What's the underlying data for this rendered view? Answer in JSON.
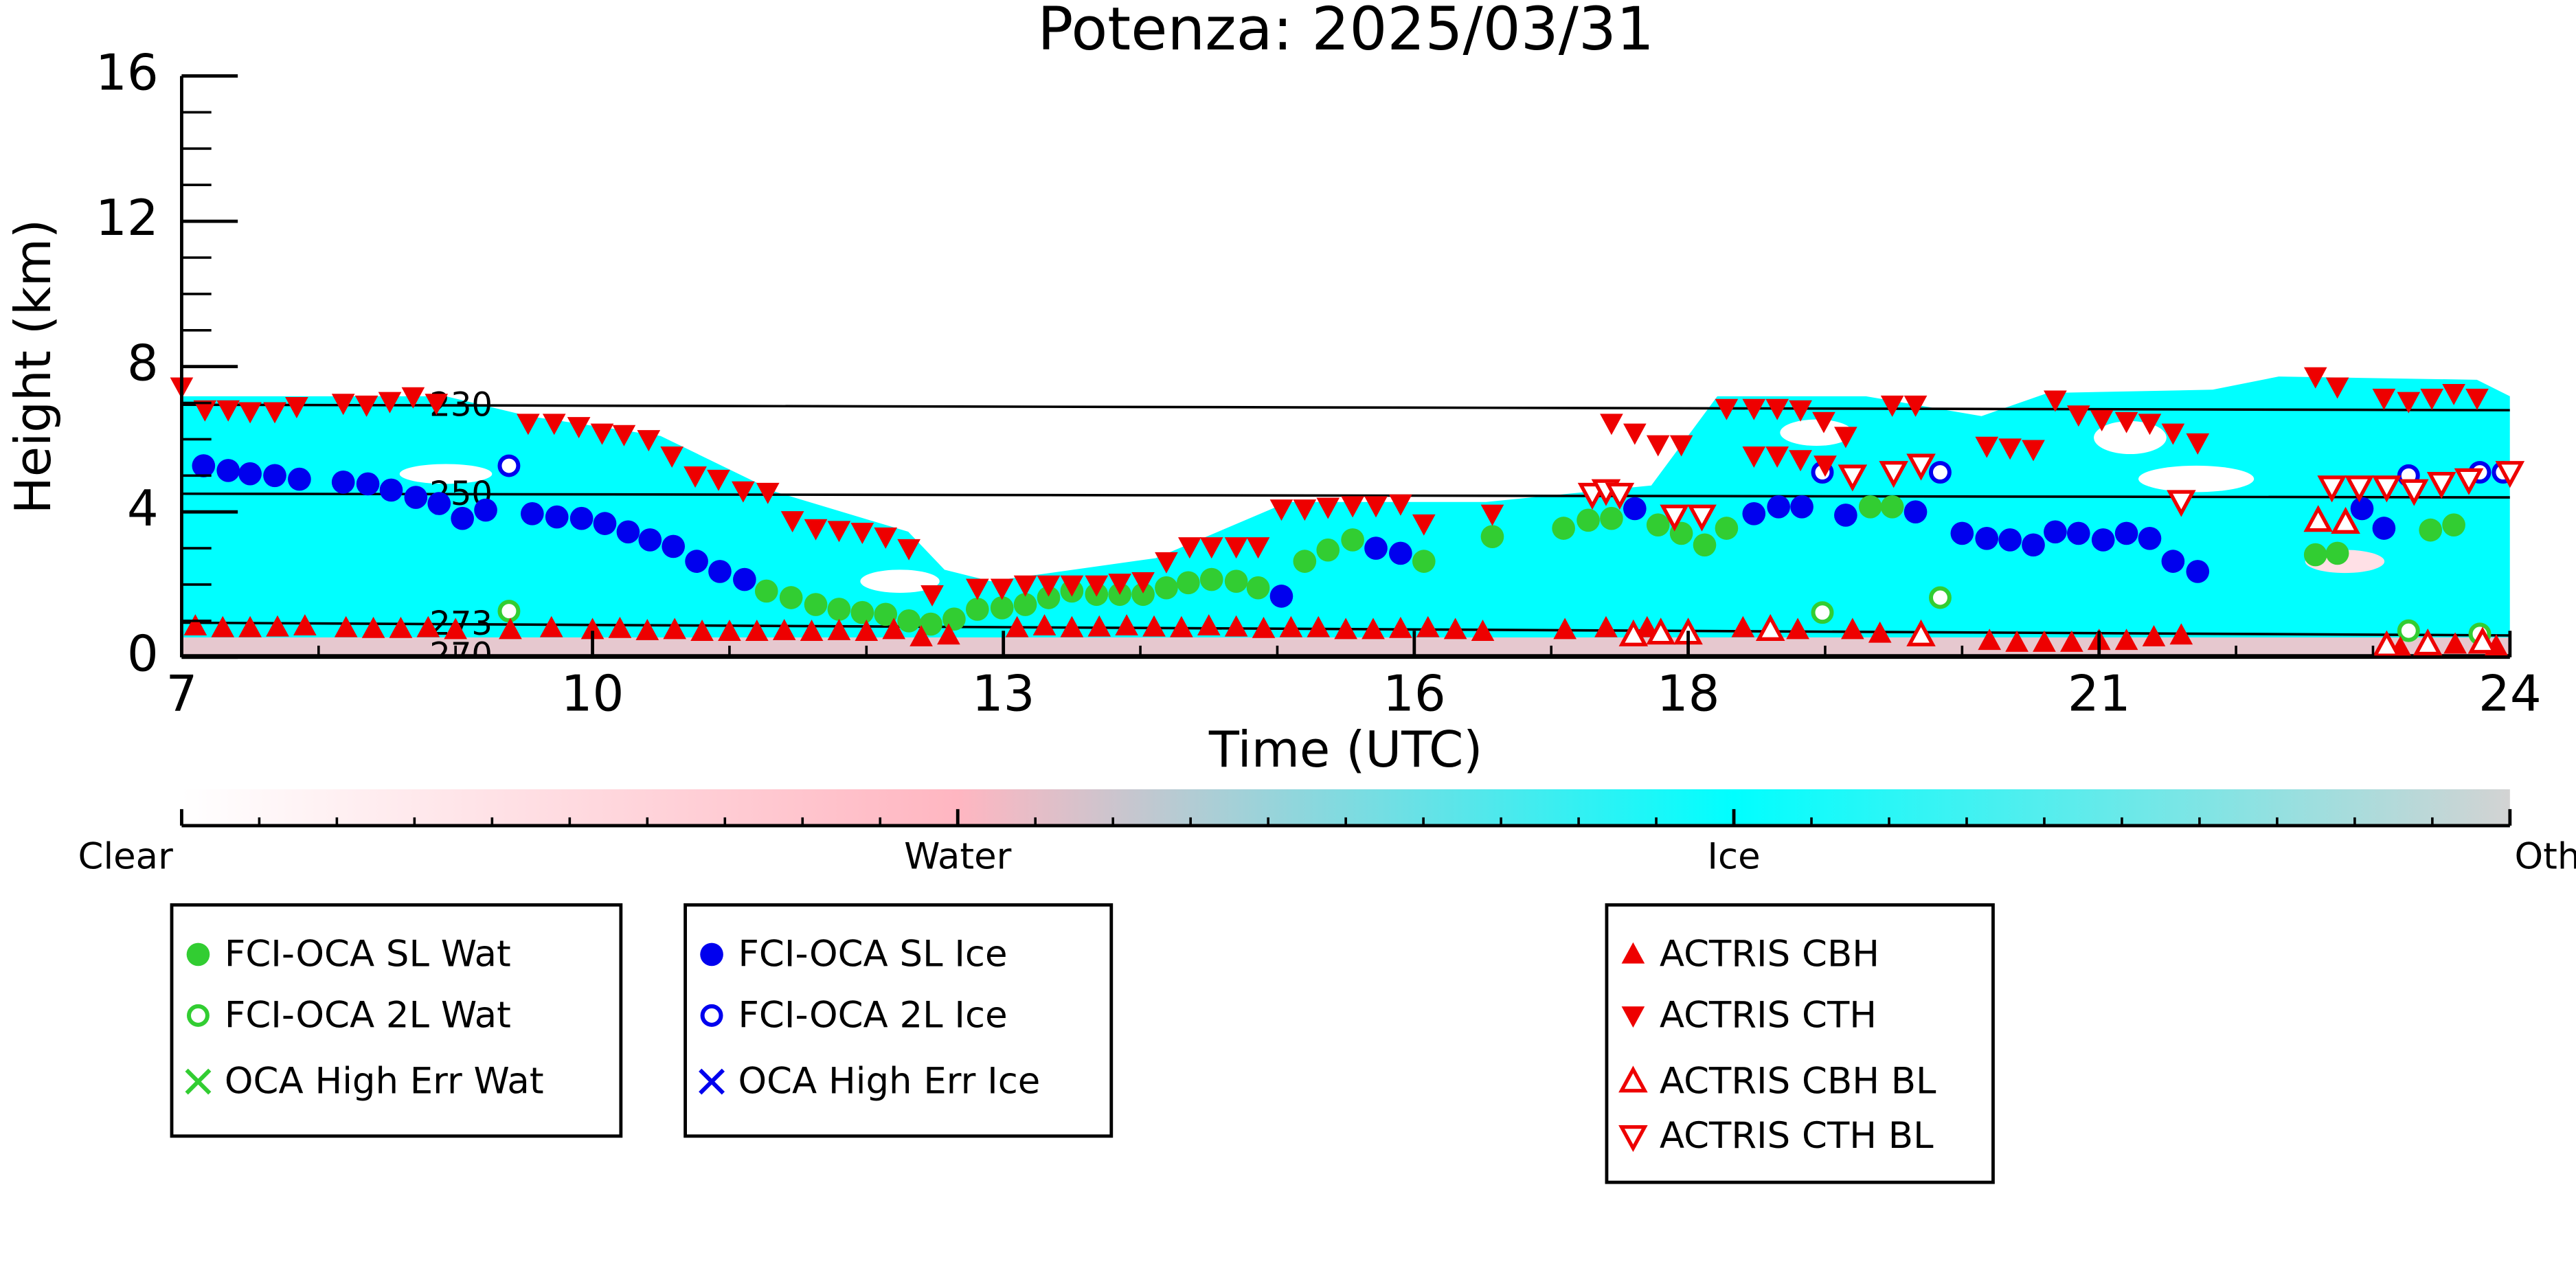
{
  "chart_data": {
    "type": "scatter",
    "title": "Potenza: 2025/03/31",
    "xlabel": "Time (UTC)",
    "ylabel": "Height (km)",
    "xlim": [
      7,
      24
    ],
    "ylim": [
      0,
      16
    ],
    "xticks": [
      7,
      10,
      13,
      16,
      18,
      21,
      24
    ],
    "yticks": [
      0,
      4,
      8,
      12,
      16
    ],
    "minor_ticks": {
      "x": 1,
      "y": 1
    },
    "isotherms": [
      {
        "label": "230",
        "x": [
          7,
          24
        ],
        "y": [
          6.95,
          6.8
        ]
      },
      {
        "label": "250",
        "x": [
          7,
          24
        ],
        "y": [
          4.5,
          4.4
        ]
      },
      {
        "label": "273",
        "x": [
          7,
          24
        ],
        "y": [
          0.95,
          0.6
        ]
      },
      {
        "label": "270",
        "x": [
          7,
          24
        ],
        "y": [
          0.05,
          0.05
        ]
      }
    ],
    "colorbar": {
      "labels": [
        "Clear",
        "Water",
        "Ice",
        "Other"
      ],
      "colors": [
        "#ffffff",
        "#ffb6c1",
        "#00ffff",
        "#d3d3d3"
      ]
    },
    "series": [
      {
        "name": "FCI-OCA SL Wat",
        "color": "#32cd32",
        "marker": "circle",
        "x": [
          11.27,
          11.45,
          11.63,
          11.8,
          11.97,
          12.14,
          12.31,
          12.47,
          12.64,
          12.81,
          12.99,
          13.16,
          13.33,
          13.5,
          13.68,
          13.85,
          14.02,
          14.19,
          14.35,
          14.52,
          14.7,
          14.86,
          15.2,
          15.37,
          15.55,
          16.07,
          16.57,
          17.09,
          17.27,
          17.44,
          17.78,
          17.95,
          18.12,
          18.28,
          19.33,
          19.49,
          22.58,
          22.74,
          23.42,
          23.59
        ],
        "y": [
          1.82,
          1.64,
          1.45,
          1.32,
          1.23,
          1.18,
          1.0,
          0.91,
          1.05,
          1.32,
          1.36,
          1.45,
          1.64,
          1.82,
          1.73,
          1.73,
          1.73,
          1.91,
          2.05,
          2.14,
          2.09,
          1.91,
          2.64,
          2.95,
          3.23,
          2.64,
          3.32,
          3.55,
          3.77,
          3.82,
          3.64,
          3.41,
          3.09,
          3.55,
          4.14,
          4.14,
          2.82,
          2.86,
          3.5,
          3.64
        ]
      },
      {
        "name": "FCI-OCA 2L Wat",
        "color": "#32cd32",
        "marker": "circle-open",
        "x": [
          9.39,
          18.98,
          19.84,
          23.26,
          23.78
        ],
        "y": [
          1.27,
          1.23,
          1.64,
          0.73,
          0.64
        ]
      },
      {
        "name": "OCA High Err Wat",
        "color": "#32cd32",
        "marker": "x",
        "x": [],
        "y": []
      },
      {
        "name": "FCI-OCA SL Ice",
        "color": "#0000ee",
        "marker": "circle",
        "x": [
          7.16,
          7.34,
          7.5,
          7.68,
          7.86,
          8.18,
          8.36,
          8.53,
          8.71,
          8.88,
          9.05,
          9.22,
          9.56,
          9.74,
          9.92,
          10.09,
          10.26,
          10.42,
          10.59,
          10.76,
          10.93,
          11.11,
          15.03,
          15.72,
          15.9,
          17.61,
          18.48,
          18.66,
          18.83,
          19.15,
          19.66,
          20.0,
          20.18,
          20.35,
          20.52,
          20.68,
          20.85,
          21.03,
          21.2,
          21.37,
          21.54,
          21.72,
          22.92,
          23.08
        ],
        "y": [
          5.27,
          5.14,
          5.05,
          5.0,
          4.9,
          4.82,
          4.77,
          4.6,
          4.4,
          4.23,
          3.82,
          4.05,
          3.95,
          3.86,
          3.82,
          3.68,
          3.45,
          3.23,
          3.05,
          2.64,
          2.36,
          2.14,
          1.68,
          3.0,
          2.86,
          4.09,
          3.95,
          4.14,
          4.14,
          3.91,
          4.0,
          3.41,
          3.27,
          3.23,
          3.09,
          3.45,
          3.41,
          3.23,
          3.41,
          3.27,
          2.64,
          2.36,
          4.09,
          3.55
        ]
      },
      {
        "name": "FCI-OCA 2L Ice",
        "color": "#0000ee",
        "marker": "circle-open",
        "x": [
          9.39,
          18.98,
          19.84,
          23.26,
          23.78,
          23.95
        ],
        "y": [
          5.27,
          5.09,
          5.09,
          5.0,
          5.09,
          5.09
        ]
      },
      {
        "name": "OCA High Err Ice",
        "color": "#0000ee",
        "marker": "x",
        "x": [],
        "y": []
      },
      {
        "name": "ACTRIS CBH",
        "color": "#ee0000",
        "marker": "triangle-up",
        "x": [
          7.1,
          7.3,
          7.5,
          7.7,
          7.9,
          8.2,
          8.4,
          8.6,
          8.8,
          9.0,
          9.4,
          9.7,
          10.0,
          10.2,
          10.4,
          10.6,
          10.8,
          11.0,
          11.2,
          11.4,
          11.6,
          11.8,
          12.0,
          12.2,
          12.4,
          12.6,
          13.1,
          13.3,
          13.5,
          13.7,
          13.9,
          14.1,
          14.3,
          14.5,
          14.7,
          14.9,
          15.1,
          15.3,
          15.5,
          15.7,
          15.9,
          16.1,
          16.3,
          16.5,
          17.1,
          17.4,
          17.7,
          18.4,
          18.8,
          19.2,
          19.4,
          20.2,
          20.4,
          20.6,
          20.8,
          21.0,
          21.2,
          21.4,
          21.6,
          23.2,
          23.6,
          23.9
        ],
        "y": [
          0.85,
          0.8,
          0.8,
          0.82,
          0.85,
          0.8,
          0.78,
          0.78,
          0.8,
          0.75,
          0.75,
          0.8,
          0.75,
          0.78,
          0.72,
          0.75,
          0.7,
          0.7,
          0.7,
          0.72,
          0.7,
          0.72,
          0.7,
          0.75,
          0.55,
          0.6,
          0.8,
          0.85,
          0.8,
          0.82,
          0.85,
          0.82,
          0.8,
          0.85,
          0.82,
          0.78,
          0.8,
          0.8,
          0.75,
          0.75,
          0.78,
          0.8,
          0.75,
          0.7,
          0.75,
          0.8,
          0.8,
          0.8,
          0.75,
          0.75,
          0.65,
          0.45,
          0.4,
          0.4,
          0.4,
          0.45,
          0.45,
          0.55,
          0.6,
          0.25,
          0.35,
          0.3
        ]
      },
      {
        "name": "ACTRIS CTH",
        "color": "#ee0000",
        "marker": "triangle-down",
        "x": [
          7.0,
          7.17,
          7.34,
          7.5,
          7.68,
          7.84,
          8.18,
          8.35,
          8.52,
          8.69,
          8.86,
          9.53,
          9.72,
          9.9,
          10.07,
          10.23,
          10.41,
          10.58,
          10.75,
          10.92,
          11.1,
          11.28,
          11.46,
          11.63,
          11.8,
          11.97,
          12.14,
          12.31,
          12.48,
          12.81,
          12.99,
          13.16,
          13.33,
          13.5,
          13.68,
          13.85,
          14.02,
          14.19,
          14.36,
          14.52,
          14.7,
          14.86,
          15.03,
          15.2,
          15.37,
          15.55,
          15.72,
          15.9,
          16.07,
          16.57,
          17.44,
          17.61,
          17.78,
          17.95,
          18.28,
          18.48,
          18.65,
          18.82,
          18.99,
          19.15,
          18.48,
          18.65,
          18.82,
          19.0,
          19.49,
          19.66,
          20.18,
          20.35,
          20.52,
          20.68,
          20.85,
          21.02,
          21.2,
          21.37,
          21.54,
          21.72,
          22.58,
          22.74,
          23.08,
          23.26,
          23.43,
          23.59,
          23.76
        ],
        "y": [
          7.45,
          6.82,
          6.82,
          6.77,
          6.77,
          6.91,
          7.0,
          6.95,
          7.05,
          7.18,
          7.0,
          6.45,
          6.45,
          6.36,
          6.18,
          6.14,
          6.0,
          5.55,
          5.0,
          4.91,
          4.59,
          4.55,
          3.77,
          3.55,
          3.5,
          3.45,
          3.32,
          3.0,
          1.73,
          1.91,
          1.91,
          2.0,
          2.0,
          2.0,
          2.0,
          2.05,
          2.09,
          2.64,
          3.05,
          3.05,
          3.05,
          3.05,
          4.09,
          4.09,
          4.14,
          4.18,
          4.18,
          4.23,
          3.68,
          3.95,
          6.45,
          6.18,
          5.86,
          5.86,
          6.86,
          6.86,
          6.86,
          6.82,
          6.5,
          6.09,
          5.55,
          5.55,
          5.45,
          5.3,
          6.95,
          6.95,
          5.82,
          5.77,
          5.73,
          7.09,
          6.68,
          6.55,
          6.5,
          6.45,
          6.18,
          5.91,
          7.73,
          7.45,
          7.14,
          7.05,
          7.14,
          7.27,
          7.14
        ]
      },
      {
        "name": "ACTRIS CBH BL",
        "color": "#ee0000",
        "marker": "triangle-up-open",
        "x": [
          17.6,
          17.8,
          18.0,
          18.6,
          19.7,
          22.6,
          22.8,
          23.1,
          23.4,
          23.8
        ],
        "y": [
          0.6,
          0.65,
          0.65,
          0.75,
          0.6,
          3.75,
          3.7,
          0.3,
          0.35,
          0.4
        ]
      },
      {
        "name": "ACTRIS CTH BL",
        "color": "#ee0000",
        "marker": "triangle-down-open",
        "x": [
          17.3,
          17.4,
          17.5,
          17.9,
          18.1,
          19.2,
          19.5,
          19.7,
          21.6,
          22.7,
          22.9,
          23.1,
          23.3,
          23.5,
          23.7,
          24.0
        ],
        "y": [
          4.5,
          4.6,
          4.5,
          3.9,
          3.9,
          5.0,
          5.1,
          5.3,
          4.3,
          4.7,
          4.7,
          4.7,
          4.6,
          4.8,
          4.9,
          5.1
        ]
      }
    ]
  }
}
